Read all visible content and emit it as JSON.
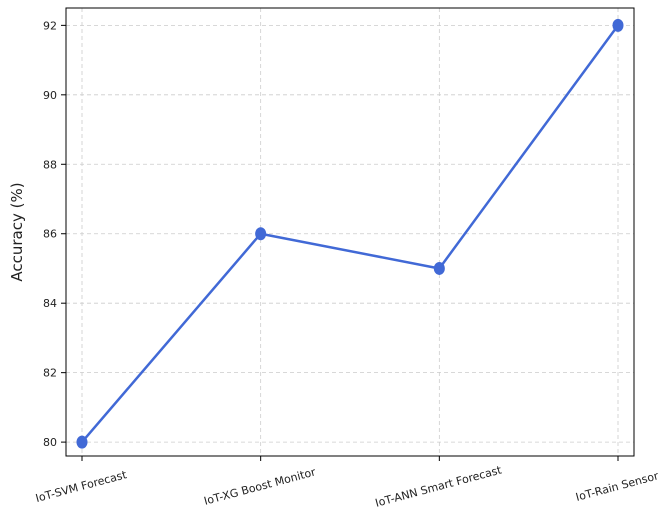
{
  "chart_data": {
    "type": "line",
    "title": "",
    "xlabel": "",
    "ylabel": "Accuracy (%)",
    "categories": [
      "IoT-SVM Forecast",
      "IoT-XG Boost Monitor",
      "IoT-ANN Smart Forecast",
      "IoT-Rain Sensor"
    ],
    "series": [
      {
        "values": [
          80,
          86,
          85,
          92
        ]
      }
    ],
    "ylim": [
      79.6,
      92.5
    ],
    "yticks": [
      80,
      82,
      84,
      86,
      88,
      90,
      92
    ],
    "grid": true,
    "x_tick_rotation_deg": -15,
    "colors": {
      "line": "#4169d6",
      "marker": "#4169d6",
      "grid": "#cccccc",
      "axes": "#000000"
    }
  }
}
